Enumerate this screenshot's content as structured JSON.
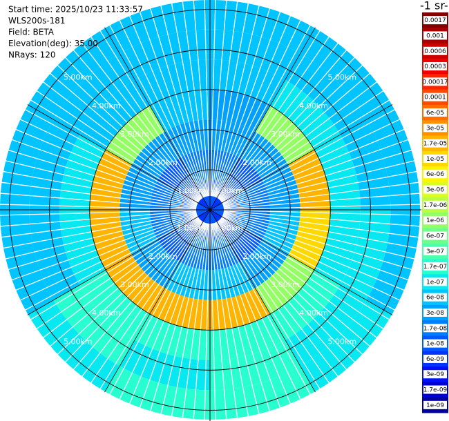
{
  "chart_data": {
    "type": "ppi",
    "info": [
      "Start time: 2025/10/23 11:33:57",
      "WLS200s-181",
      "Field: BETA",
      "Elevation(deg): 35.00",
      "NRays: 120"
    ],
    "colorbar_label": "-1 sr-",
    "rlim": [
      0,
      5.25
    ],
    "rings": [
      {
        "value": 1,
        "label": "1.00km"
      },
      {
        "value": 2,
        "label": "2.00km"
      },
      {
        "value": 3,
        "label": "3.00km"
      },
      {
        "value": 4,
        "label": "4.00km"
      },
      {
        "value": 5,
        "label": "5.00km"
      }
    ],
    "colorbar_ticks": [
      0.0017,
      0.001,
      0.0006,
      0.0003,
      0.00017,
      0.0001,
      {
        "value": 6e-05,
        "label": "6e-05"
      },
      {
        "value": 3e-05,
        "label": "3e-05"
      },
      {
        "value": 1.7e-05,
        "label": "1.7e-05"
      },
      {
        "value": 1e-05,
        "label": "1e-05"
      },
      {
        "value": 6e-06,
        "label": "6e-06"
      },
      {
        "value": 3e-06,
        "label": "3e-06"
      },
      {
        "value": 1.7e-06,
        "label": "1.7e-06"
      },
      {
        "value": 1e-06,
        "label": "1e-06"
      },
      {
        "value": 6e-07,
        "label": "6e-07"
      },
      {
        "value": 3e-07,
        "label": "3e-07"
      },
      {
        "value": 1.7e-07,
        "label": "1.7e-07"
      },
      {
        "value": 1e-07,
        "label": "1e-07"
      },
      {
        "value": 6e-08,
        "label": "6e-08"
      },
      {
        "value": 3e-08,
        "label": "3e-08"
      },
      {
        "value": 1.7e-08,
        "label": "1.7e-08"
      },
      {
        "value": 1e-08,
        "label": "1e-08"
      },
      {
        "value": 6e-09,
        "label": "6e-09"
      },
      {
        "value": 3e-09,
        "label": "3e-09"
      },
      {
        "value": 1.7e-09,
        "label": "1.7e-09"
      },
      {
        "value": 1e-09,
        "label": "1e-09"
      }
    ],
    "colors": [
      "#840000",
      "#a80000",
      "#cc0000",
      "#f00000",
      "#ff2400",
      "#ff4800",
      "#ff6c00",
      "#ff9000",
      "#ffb400",
      "#ffd800",
      "#fff500",
      "#dcff1c",
      "#b8ff40",
      "#94ff64",
      "#70ff88",
      "#4cffac",
      "#28ffd0",
      "#08e8f0",
      "#00c4ff",
      "#00a0ff",
      "#007cff",
      "#0058ff",
      "#0034ff",
      "#0010ff",
      "#0000d8",
      "#0000a0"
    ],
    "field": [
      [
        1e-08,
        6e-09,
        1e-08,
        1e-08,
        6e-09,
        1e-08,
        1e-08,
        6e-09,
        1e-08,
        1e-08,
        6e-09,
        1e-08
      ],
      [
        1.7e-08,
        1e-08,
        1.7e-08,
        1.7e-08,
        1e-08,
        1.7e-08,
        1.7e-08,
        1e-08,
        1.7e-08,
        1.7e-08,
        1e-08,
        1.7e-08
      ],
      [
        3e-08,
        3e-08,
        3e-08,
        6e-08,
        3e-08,
        6e-08,
        6e-08,
        3e-08,
        6e-08,
        3e-08,
        3e-08,
        3e-08
      ],
      [
        3e-08,
        1e-06,
        1.7e-05,
        1e-05,
        1e-06,
        1.7e-05,
        1.7e-05,
        1.7e-05,
        1.7e-05,
        1.7e-05,
        1e-06,
        6e-08
      ],
      [
        6e-08,
        1e-07,
        1e-07,
        1e-07,
        1.7e-07,
        1.7e-07,
        1.7e-07,
        1.7e-07,
        1e-07,
        1e-07,
        6e-08,
        6e-08
      ],
      [
        6e-08,
        6e-08,
        6e-08,
        1e-07,
        1e-07,
        1.7e-07,
        1e-07,
        1.7e-07,
        6e-08,
        6e-08,
        6e-08,
        6e-08
      ],
      [
        6e-08,
        6e-08,
        6e-08,
        6e-08,
        1e-07,
        1.7e-07,
        1.7e-07,
        1e-07,
        6e-08,
        6e-08,
        6e-08,
        6e-08
      ]
    ]
  }
}
